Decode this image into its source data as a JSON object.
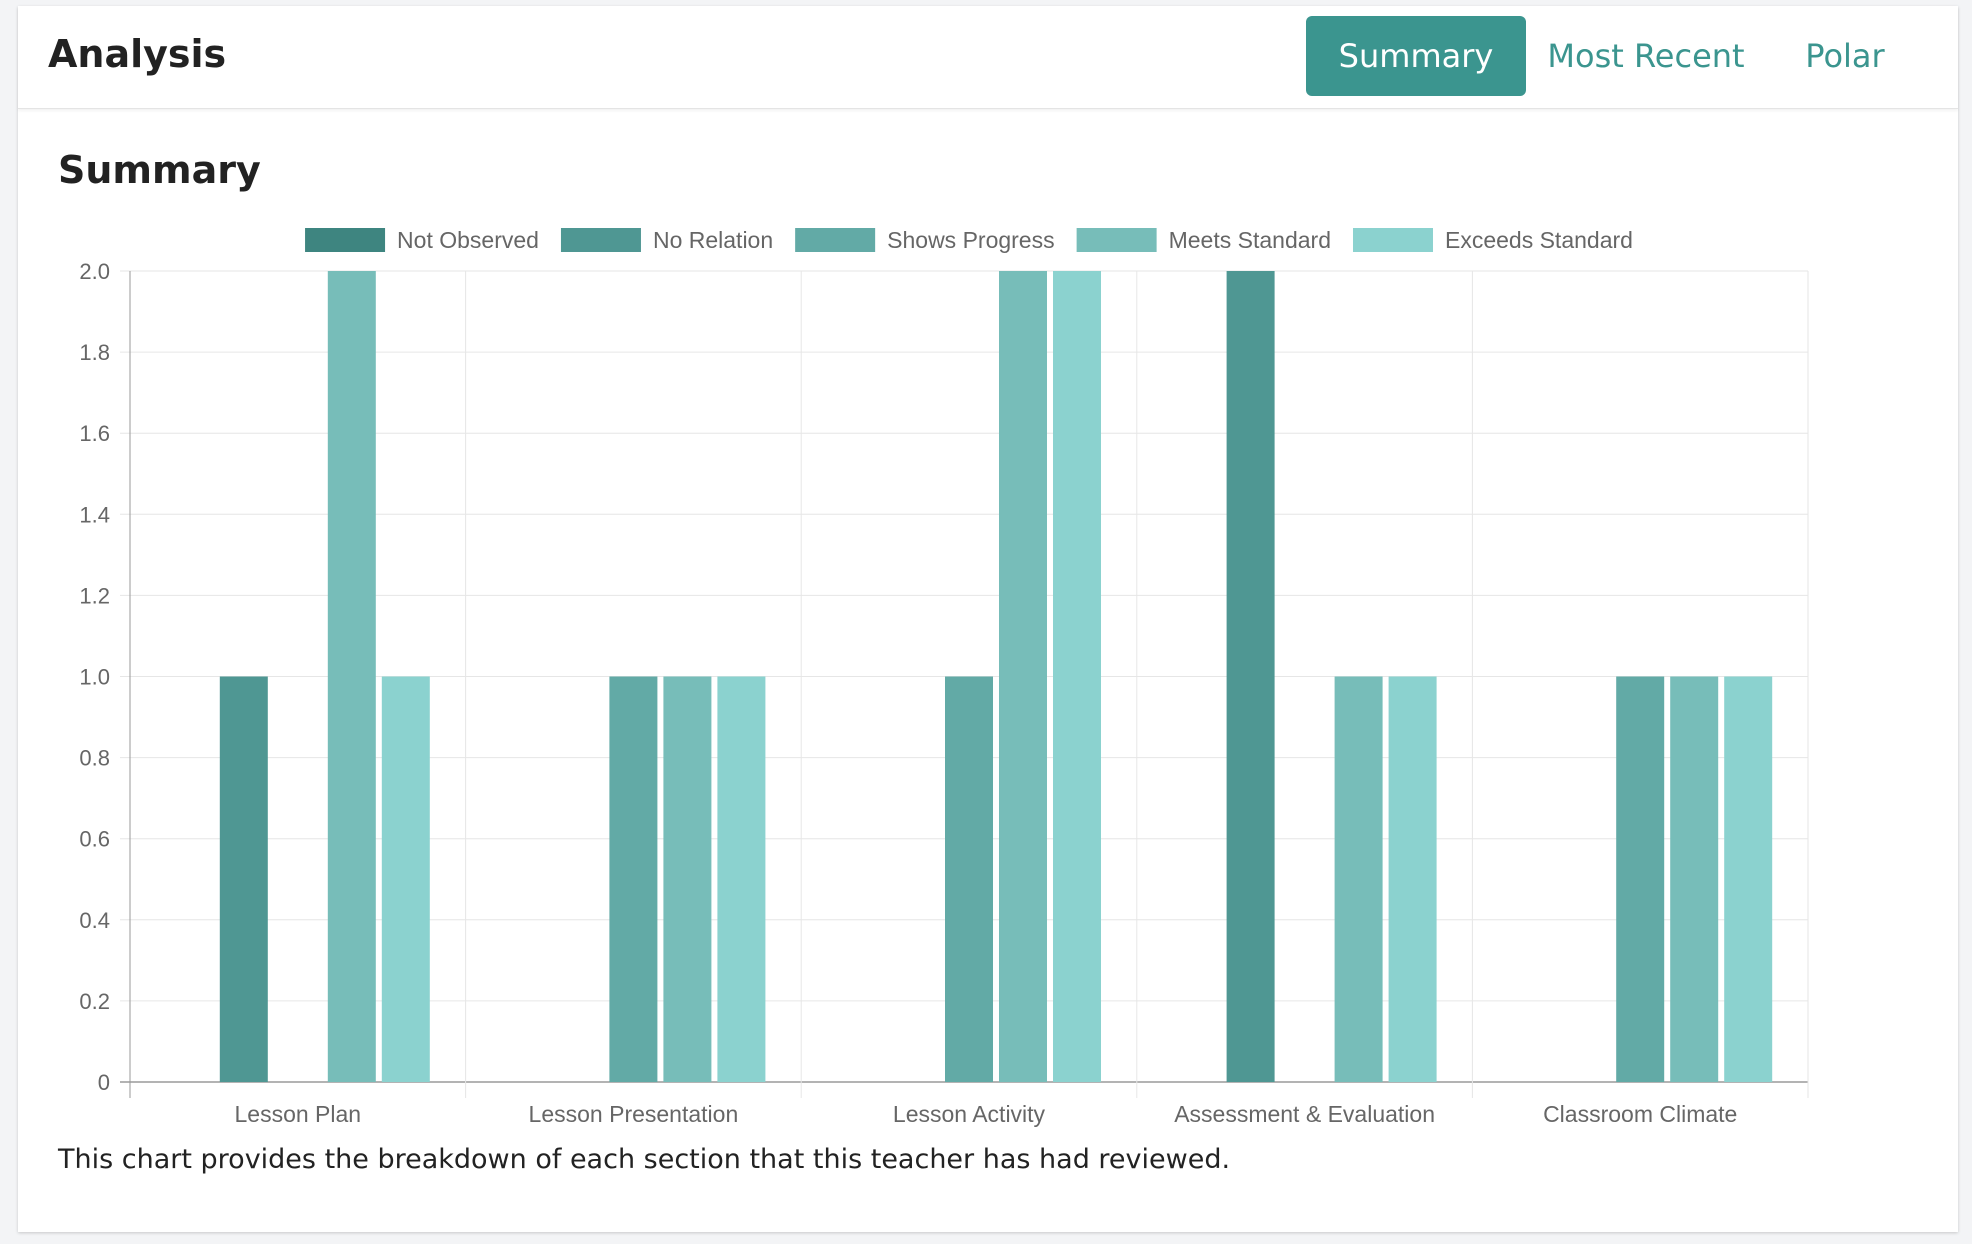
{
  "header": {
    "title": "Analysis",
    "tabs": [
      {
        "label": "Summary",
        "active": true
      },
      {
        "label": "Most Recent",
        "active": false
      },
      {
        "label": "Polar",
        "active": false
      }
    ]
  },
  "section": {
    "title": "Summary",
    "caption": "This chart provides the breakdown of each section that this teacher has had reviewed."
  },
  "colors": {
    "accent": "#3b958f",
    "series": [
      "#3e8580",
      "#4f9793",
      "#62aaa6",
      "#77bdb9",
      "#8bd2cf"
    ]
  },
  "chart_data": {
    "type": "bar",
    "title": "",
    "xlabel": "",
    "ylabel": "",
    "ylim": [
      0,
      2
    ],
    "y_ticks": [
      "0",
      "0.2",
      "0.4",
      "0.6",
      "0.8",
      "1.0",
      "1.2",
      "1.4",
      "1.6",
      "1.8",
      "2.0"
    ],
    "grid": true,
    "legend_position": "top",
    "categories": [
      "Lesson Plan",
      "Lesson Presentation",
      "Lesson Activity",
      "Assessment & Evaluation",
      "Classroom Climate"
    ],
    "series": [
      {
        "name": "Not Observed",
        "values": [
          0,
          0,
          0,
          0,
          0
        ]
      },
      {
        "name": "No Relation",
        "values": [
          1,
          0,
          0,
          2,
          0
        ]
      },
      {
        "name": "Shows Progress",
        "values": [
          0,
          1,
          1,
          0,
          1
        ]
      },
      {
        "name": "Meets Standard",
        "values": [
          2,
          1,
          2,
          1,
          1
        ]
      },
      {
        "name": "Exceeds Standard",
        "values": [
          1,
          1,
          2,
          1,
          1
        ]
      }
    ]
  }
}
